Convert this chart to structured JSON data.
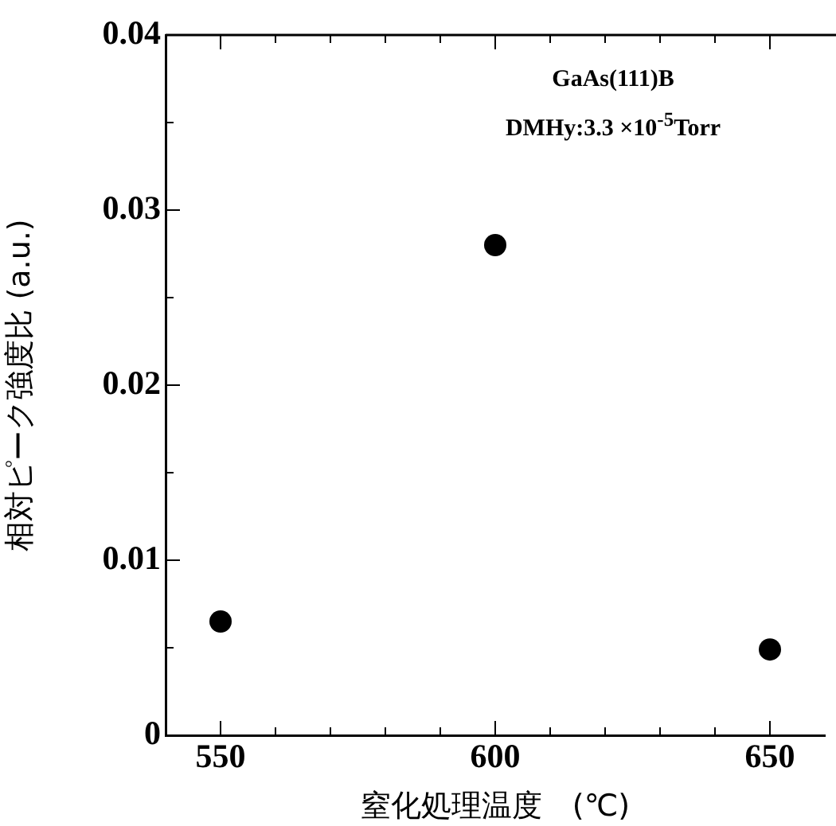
{
  "chart_data": {
    "type": "scatter",
    "xlabel": "窒化処理温度　(℃)",
    "ylabel": "相対ピーク強度比 (a.u.)",
    "annotations": [
      "GaAs(111)B",
      "DMHy:3.3 ×10$^{-5}$Torr"
    ],
    "x": [
      550,
      600,
      650
    ],
    "series": [
      {
        "color": "#000000",
        "values": [
          0.0065,
          0.028,
          0.0049
        ]
      }
    ],
    "xlim": [
      540,
      660
    ],
    "xticks": [
      550,
      {
        "value": 560,
        "label": null
      },
      {
        "value": 570,
        "label": null
      },
      {
        "value": 580,
        "label": null
      },
      {
        "value": 590,
        "label": null
      },
      600,
      {
        "value": 610,
        "label": null
      },
      {
        "value": 620,
        "label": null
      },
      {
        "value": 630,
        "label": null
      },
      {
        "value": 640,
        "label": null
      },
      650
    ],
    "ylim": [
      0,
      0.04
    ],
    "yticks": [
      0,
      {
        "value": 0.005,
        "label": null
      },
      0.01,
      {
        "value": 0.015,
        "label": null
      },
      0.02,
      {
        "value": 0.025,
        "label": null
      },
      0.03,
      {
        "value": 0.035,
        "label": null
      },
      0.04
    ],
    "grid": false,
    "legend": false,
    "marker": "circle"
  }
}
